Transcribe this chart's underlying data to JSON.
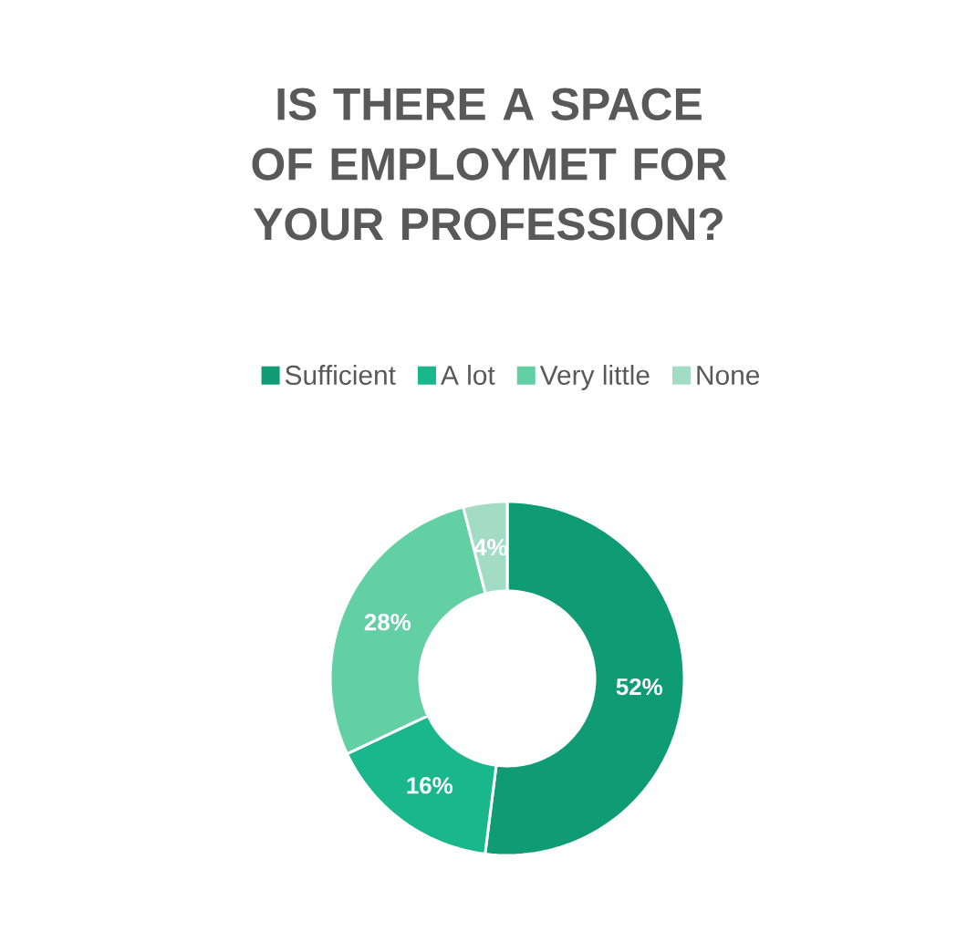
{
  "chart_data": {
    "type": "donut",
    "title": "IS THERE A SPACE OF EMPLOYMET FOR YOUR PROFESSION?",
    "categories": [
      "Sufficient",
      "A lot",
      "Very little",
      "None"
    ],
    "values": [
      52,
      16,
      28,
      4
    ],
    "value_labels": [
      "52%",
      "16%",
      "28%",
      "4%"
    ],
    "colors": [
      "#0f9b74",
      "#1ab68c",
      "#62cfa4",
      "#a3dcc5"
    ],
    "legend": "top"
  }
}
